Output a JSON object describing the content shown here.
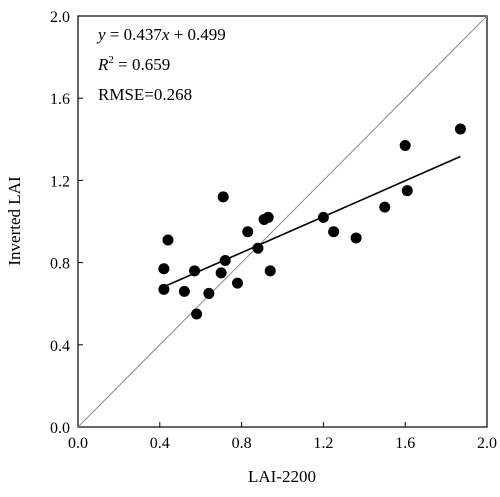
{
  "chart_data": {
    "type": "scatter",
    "x_label": "LAI-2200",
    "y_label": "Inverted LAI",
    "xlim": [
      0,
      2
    ],
    "ylim": [
      0,
      2
    ],
    "xticks": [
      {
        "value": 0,
        "label": "0.0"
      },
      0.4,
      0.8,
      1.2,
      1.6,
      {
        "value": 2,
        "label": "2.0"
      }
    ],
    "yticks": [
      {
        "value": 0,
        "label": "0.0"
      },
      0.4,
      0.8,
      1.2,
      1.6,
      {
        "value": 2,
        "label": "2.0"
      }
    ],
    "color": "#000000",
    "x": [
      0.42,
      0.44,
      0.42,
      0.52,
      0.57,
      0.58,
      0.64,
      0.7,
      0.71,
      0.72,
      0.78,
      0.83,
      0.88,
      0.91,
      0.93,
      0.94,
      1.2,
      1.25,
      1.36,
      1.5,
      1.6,
      1.61,
      1.87
    ],
    "values": [
      0.77,
      0.91,
      0.67,
      0.66,
      0.76,
      0.55,
      0.65,
      0.75,
      1.12,
      0.81,
      0.7,
      0.95,
      0.87,
      1.01,
      1.02,
      0.76,
      1.02,
      0.95,
      0.92,
      1.07,
      1.37,
      1.15,
      1.45
    ],
    "fit": {
      "slope": 0.437,
      "intercept": 0.499
    },
    "annotations": [
      [
        "y",
        " = 0.437",
        "x",
        " + 0.499"
      ],
      [
        "R",
        "2",
        " = 0.659"
      ],
      [
        "RMSE=0.268"
      ]
    ]
  }
}
